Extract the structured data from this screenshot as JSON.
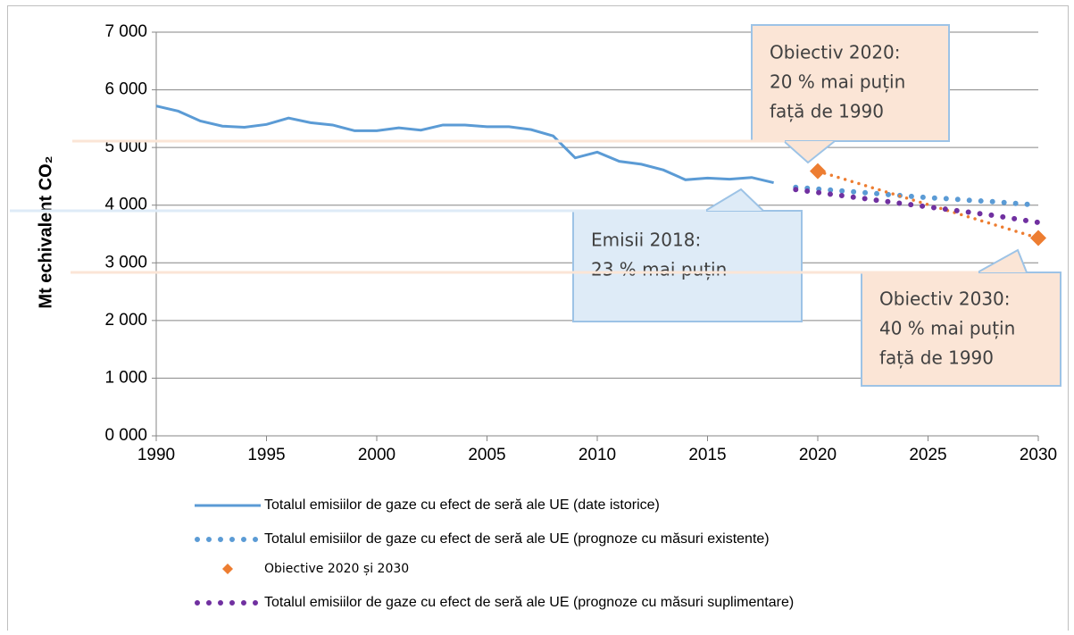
{
  "chart_data": {
    "type": "line",
    "y_label": "Mt echivalent CO₂",
    "xlim": [
      1990,
      2030
    ],
    "xticks": [
      1990,
      1995,
      2000,
      2005,
      2010,
      2015,
      2020,
      2025,
      2030
    ],
    "ylim": [
      0,
      7000
    ],
    "yticks": [
      {
        "value": 0,
        "label": "0 000"
      },
      {
        "value": 1000,
        "label": "1 000"
      },
      {
        "value": 2000,
        "label": "2 000"
      },
      {
        "value": 3000,
        "label": "3 000"
      },
      {
        "value": 4000,
        "label": "4 000"
      },
      {
        "value": 5000,
        "label": "5 000"
      },
      {
        "value": 6000,
        "label": "6 000"
      },
      {
        "value": 7000,
        "label": "7 000"
      }
    ],
    "grid": true,
    "series": [
      {
        "name": "Totalul emisiilor de gaze cu efect de seră ale UE (date istorice)",
        "color": "#5b9bd5",
        "style": "solid",
        "x": [
          1990,
          1991,
          1992,
          1993,
          1994,
          1995,
          1996,
          1997,
          1998,
          1999,
          2000,
          2001,
          2002,
          2003,
          2004,
          2005,
          2006,
          2007,
          2008,
          2009,
          2010,
          2011,
          2012,
          2013,
          2014,
          2015,
          2016,
          2017,
          2018
        ],
        "values": [
          5720,
          5630,
          5460,
          5370,
          5350,
          5400,
          5510,
          5430,
          5390,
          5290,
          5290,
          5340,
          5300,
          5390,
          5390,
          5360,
          5360,
          5310,
          5200,
          4820,
          4920,
          4760,
          4710,
          4610,
          4440,
          4470,
          4450,
          4480,
          4390
        ]
      },
      {
        "name": "Totalul emisiilor de gaze cu efect de seră ale UE (prognoze cu măsuri existente)",
        "color": "#5b9bd5",
        "style": "dots",
        "x": [
          2019,
          2020,
          2021,
          2022,
          2023,
          2024,
          2025,
          2026,
          2027,
          2028,
          2029,
          2030
        ],
        "values": [
          4310,
          4280,
          4250,
          4220,
          4190,
          4160,
          4130,
          4110,
          4080,
          4060,
          4030,
          4000
        ]
      },
      {
        "name": "Obiective 2020 și 2030",
        "color": "#ed7d31",
        "style": "diamond",
        "x": [
          2020,
          2030
        ],
        "values": [
          4590,
          3430
        ]
      },
      {
        "name": "Totalul emisiilor de gaze cu efect de seră ale UE (prognoze cu măsuri suplimentare)",
        "color": "#7030a0",
        "style": "dots",
        "x": [
          2019,
          2020,
          2021,
          2022,
          2023,
          2024,
          2025,
          2026,
          2027,
          2028,
          2029,
          2030
        ],
        "values": [
          4270,
          4220,
          4170,
          4120,
          4070,
          4020,
          3970,
          3920,
          3870,
          3820,
          3760,
          3700
        ]
      }
    ],
    "annotations": [
      {
        "lines": [
          "Obiectiv 2020:",
          "20 % mai puțin",
          "față de 1990"
        ],
        "fill": "#fbe5d6"
      },
      {
        "lines": [
          "Emisii 2018:",
          "23 % mai puțin"
        ],
        "fill": "#deebf7"
      },
      {
        "lines": [
          "Obiectiv 2030:",
          "40 % mai puțin",
          "față de 1990"
        ],
        "fill": "#fbe5d6"
      }
    ]
  }
}
